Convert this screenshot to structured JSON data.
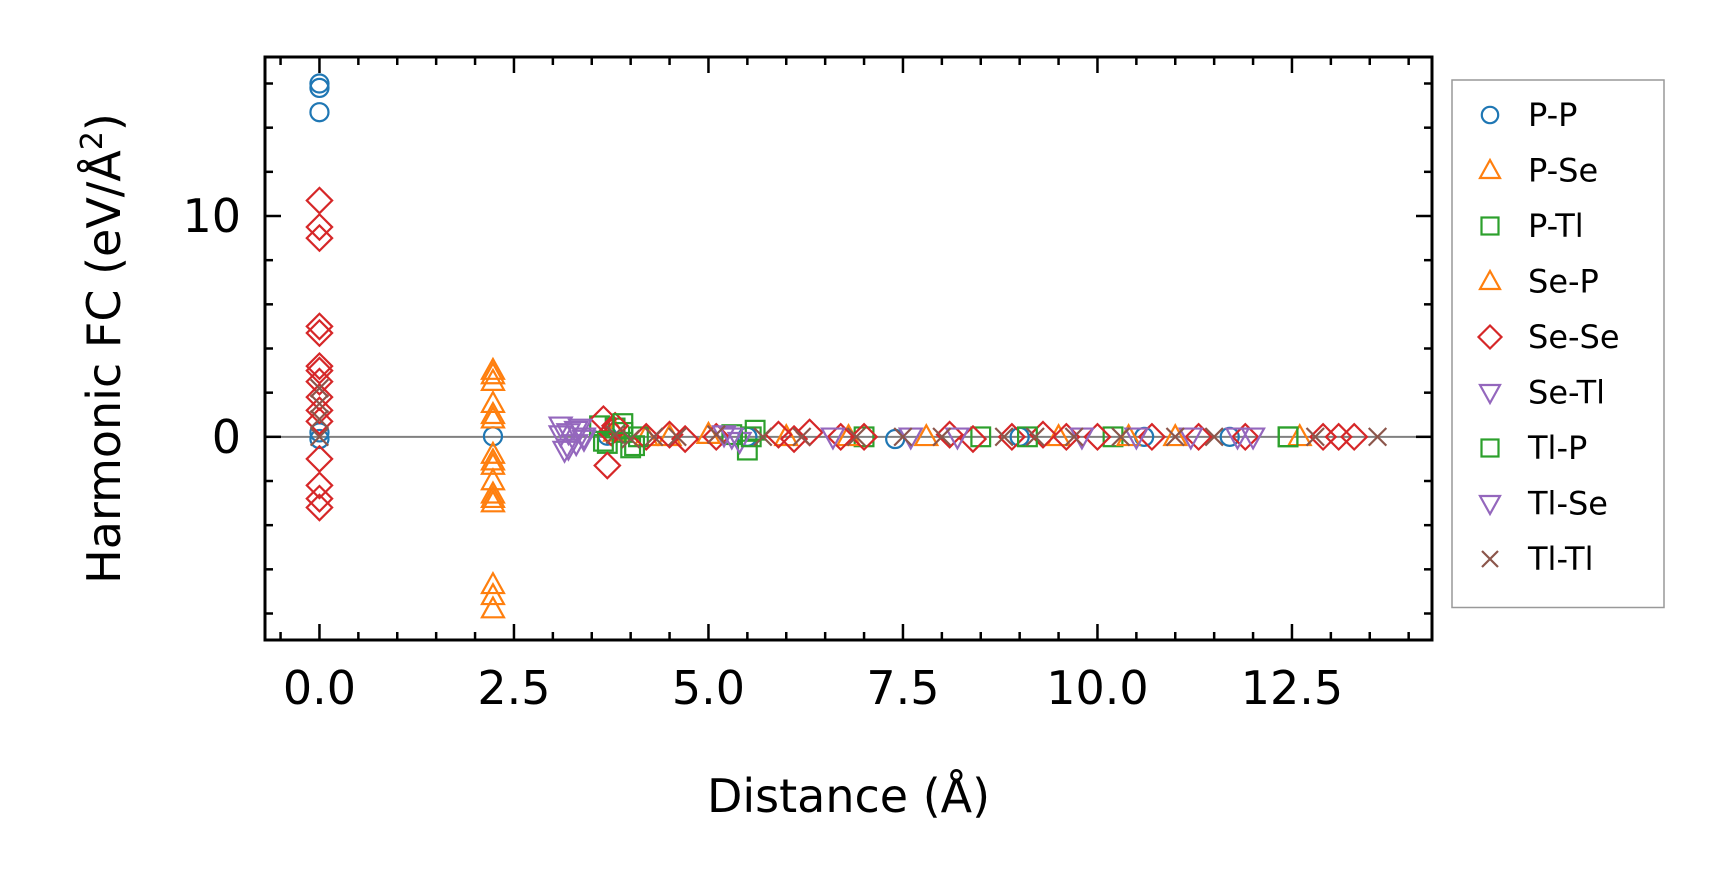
{
  "chart_data": {
    "type": "scatter",
    "title": "",
    "xlabel": "Distance (Å)",
    "ylabel_main": "Harmonic FC (eV/Å",
    "ylabel_sup": "2",
    "ylabel_end": ")",
    "xlim": [
      -0.7,
      14.3
    ],
    "ylim": [
      -9.2,
      17.2
    ],
    "xticks": [
      0.0,
      2.5,
      5.0,
      7.5,
      10.0,
      12.5
    ],
    "xtick_labels": [
      "0.0",
      "2.5",
      "5.0",
      "7.5",
      "10.0",
      "12.5"
    ],
    "yticks": [
      0,
      10
    ],
    "ytick_labels": [
      "0",
      "10"
    ],
    "legend_position": "outside-right",
    "reference_line_y": 0,
    "series": [
      {
        "name": "P-P",
        "marker": "circle",
        "color": "#1f77b4",
        "points": [
          [
            0,
            16.0
          ],
          [
            0,
            15.8
          ],
          [
            0,
            14.7
          ],
          [
            0,
            0.2
          ],
          [
            0,
            -0.1
          ],
          [
            2.23,
            0.02
          ],
          [
            3.7,
            0.05
          ],
          [
            5.5,
            0.0
          ],
          [
            7.4,
            -0.1
          ],
          [
            9.0,
            0.0
          ],
          [
            10.6,
            0.0
          ],
          [
            11.7,
            0.0
          ]
        ]
      },
      {
        "name": "P-Se",
        "marker": "triangle-up",
        "color": "#ff7f0e",
        "points": [
          [
            2.23,
            3.0
          ],
          [
            2.23,
            2.5
          ],
          [
            2.23,
            1.5
          ],
          [
            2.23,
            0.8
          ],
          [
            2.23,
            -0.8
          ],
          [
            2.23,
            -1.3
          ],
          [
            2.23,
            -2.0
          ],
          [
            2.23,
            -2.8
          ],
          [
            2.23,
            -3.0
          ],
          [
            2.23,
            -6.7
          ],
          [
            2.23,
            -7.2
          ],
          [
            2.23,
            -7.8
          ],
          [
            3.8,
            0.2
          ],
          [
            4.2,
            0.0
          ],
          [
            5.0,
            0.1
          ],
          [
            6.0,
            0.0
          ],
          [
            7.8,
            0.0
          ],
          [
            9.5,
            0.0
          ],
          [
            11.0,
            0.0
          ],
          [
            12.6,
            0.0
          ]
        ]
      },
      {
        "name": "P-Tl",
        "marker": "square",
        "color": "#2ca02c",
        "points": [
          [
            3.6,
            0.5
          ],
          [
            3.7,
            -0.3
          ],
          [
            3.8,
            0.4
          ],
          [
            3.9,
            0.2
          ],
          [
            4.0,
            -0.5
          ],
          [
            4.1,
            0.0
          ],
          [
            5.3,
            0.1
          ],
          [
            5.5,
            -0.6
          ],
          [
            5.6,
            0.3
          ],
          [
            7.0,
            0.0
          ],
          [
            8.5,
            0.0
          ],
          [
            10.2,
            0.0
          ],
          [
            12.45,
            0.0
          ]
        ]
      },
      {
        "name": "Se-P",
        "marker": "triangle-up",
        "color": "#ff7f0e",
        "points": [
          [
            2.23,
            2.8
          ],
          [
            2.23,
            1.0
          ],
          [
            2.23,
            -1.1
          ],
          [
            2.23,
            -2.6
          ],
          [
            4.5,
            0.0
          ],
          [
            6.8,
            0.0
          ],
          [
            10.4,
            0.0
          ]
        ]
      },
      {
        "name": "Se-Se",
        "marker": "diamond",
        "color": "#d62728",
        "points": [
          [
            0,
            10.7
          ],
          [
            0,
            9.5
          ],
          [
            0,
            9.0
          ],
          [
            0,
            5.0
          ],
          [
            0,
            4.7
          ],
          [
            0,
            3.2
          ],
          [
            0,
            3.0
          ],
          [
            0,
            2.5
          ],
          [
            0,
            1.8
          ],
          [
            0,
            1.2
          ],
          [
            0,
            0.7
          ],
          [
            0,
            -1.0
          ],
          [
            0,
            -2.2
          ],
          [
            0,
            -2.8
          ],
          [
            0,
            -3.2
          ],
          [
            3.65,
            0.8
          ],
          [
            3.7,
            -1.3
          ],
          [
            3.75,
            0.2
          ],
          [
            3.8,
            0.5
          ],
          [
            4.2,
            0.0
          ],
          [
            4.5,
            0.1
          ],
          [
            4.7,
            -0.1
          ],
          [
            5.1,
            0.0
          ],
          [
            5.9,
            0.1
          ],
          [
            6.1,
            -0.1
          ],
          [
            6.3,
            0.2
          ],
          [
            6.7,
            0.0
          ],
          [
            7.0,
            0.0
          ],
          [
            8.1,
            0.1
          ],
          [
            8.4,
            -0.1
          ],
          [
            8.9,
            0.0
          ],
          [
            9.3,
            0.1
          ],
          [
            9.6,
            0.0
          ],
          [
            10.0,
            0.0
          ],
          [
            10.7,
            0.0
          ],
          [
            11.3,
            0.0
          ],
          [
            11.9,
            0.0
          ],
          [
            12.9,
            0.0
          ],
          [
            13.1,
            0.0
          ],
          [
            13.3,
            0.0
          ]
        ]
      },
      {
        "name": "Se-Tl",
        "marker": "triangle-down",
        "color": "#9467bd",
        "points": [
          [
            3.1,
            0.5
          ],
          [
            3.15,
            -0.6
          ],
          [
            3.2,
            0.2
          ],
          [
            3.3,
            -0.3
          ],
          [
            3.35,
            0.4
          ],
          [
            3.4,
            0.0
          ],
          [
            5.2,
            0.1
          ],
          [
            5.4,
            -0.2
          ],
          [
            6.6,
            0.0
          ],
          [
            8.2,
            0.0
          ],
          [
            9.8,
            0.0
          ],
          [
            11.2,
            0.0
          ],
          [
            12.0,
            0.0
          ]
        ]
      },
      {
        "name": "Tl-P",
        "marker": "square",
        "color": "#2ca02c",
        "points": [
          [
            3.65,
            -0.2
          ],
          [
            3.9,
            0.6
          ],
          [
            4.05,
            -0.4
          ],
          [
            5.55,
            0.0
          ],
          [
            9.1,
            0.0
          ],
          [
            12.45,
            0.0
          ]
        ]
      },
      {
        "name": "Tl-Se",
        "marker": "triangle-down",
        "color": "#9467bd",
        "points": [
          [
            3.1,
            0.1
          ],
          [
            3.2,
            -0.5
          ],
          [
            3.3,
            0.3
          ],
          [
            3.4,
            -0.1
          ],
          [
            5.3,
            0.0
          ],
          [
            7.6,
            0.0
          ],
          [
            10.5,
            0.0
          ],
          [
            11.8,
            0.0
          ]
        ]
      },
      {
        "name": "Tl-Tl",
        "marker": "x",
        "color": "#8c564b",
        "points": [
          [
            0,
            2.2
          ],
          [
            0,
            1.5
          ],
          [
            0,
            0.8
          ],
          [
            0,
            0.0
          ],
          [
            3.8,
            0.1
          ],
          [
            4.0,
            -0.1
          ],
          [
            4.3,
            0.0
          ],
          [
            4.6,
            0.0
          ],
          [
            5.1,
            0.1
          ],
          [
            5.7,
            0.0
          ],
          [
            6.2,
            0.0
          ],
          [
            6.9,
            0.0
          ],
          [
            7.5,
            0.0
          ],
          [
            8.0,
            0.0
          ],
          [
            8.8,
            0.0
          ],
          [
            9.2,
            0.0
          ],
          [
            9.7,
            0.0
          ],
          [
            10.3,
            0.0
          ],
          [
            11.0,
            0.0
          ],
          [
            11.5,
            0.0
          ],
          [
            12.8,
            0.0
          ],
          [
            13.6,
            0.0
          ]
        ]
      }
    ]
  }
}
